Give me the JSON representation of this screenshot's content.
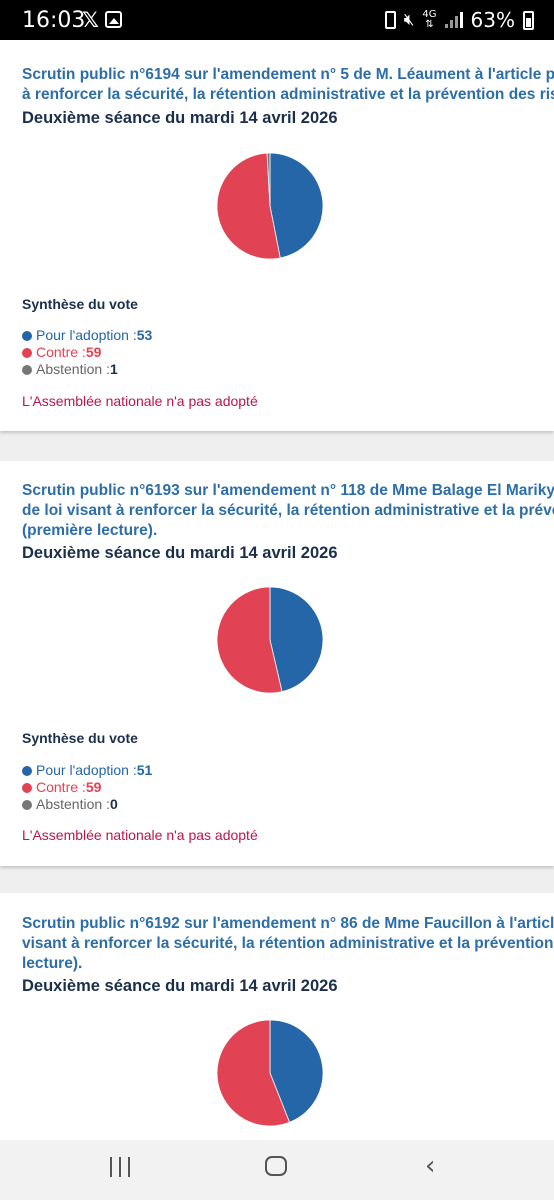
{
  "status_bar": {
    "time": "16:03",
    "x_app": "𝕏",
    "battery_percent": "63%",
    "network": "4G"
  },
  "colors": {
    "pour": "#2466a8",
    "contre": "#e24354",
    "abstention": "#777777",
    "title": "#2e6ea8",
    "result": "#b8174a"
  },
  "cards": [
    {
      "title_lines": [
        "Scrutin public n°6194 sur l'amendement n° 5 de M. Léaument à l'article prem",
        "à renforcer la sécurité, la rétention administrative et la prévention des risques"
      ],
      "session": "Deuxième séance du mardi 14 avril 2026",
      "synthese_label": "Synthèse du vote",
      "pour_label": "Pour l'adoption : ",
      "pour": 53,
      "contre_label": "Contre : ",
      "contre": 59,
      "abstention_label": "Abstention : ",
      "abstention": 1,
      "result": "L'Assemblée nationale n'a pas adopté"
    },
    {
      "title_lines": [
        "Scrutin public n°6193 sur l'amendement n° 118 de Mme Balage El Mariky à l'",
        "de loi visant à renforcer la sécurité, la rétention administrative et la préventio",
        "(première lecture)."
      ],
      "session": "Deuxième séance du mardi 14 avril 2026",
      "synthese_label": "Synthèse du vote",
      "pour_label": "Pour l'adoption : ",
      "pour": 51,
      "contre_label": "Contre : ",
      "contre": 59,
      "abstention_label": "Abstention : ",
      "abstention": 0,
      "result": "L'Assemblée nationale n'a pas adopté"
    },
    {
      "title_lines": [
        "Scrutin public n°6192 sur l'amendement n° 86 de Mme Faucillon à l'article pre",
        "visant à renforcer la sécurité, la rétention administrative et la prévention des",
        "lecture)."
      ],
      "session": "Deuxième séance du mardi 14 avril 2026",
      "pie": {
        "pour": 44,
        "contre": 56,
        "abstention": 0
      }
    }
  ]
}
